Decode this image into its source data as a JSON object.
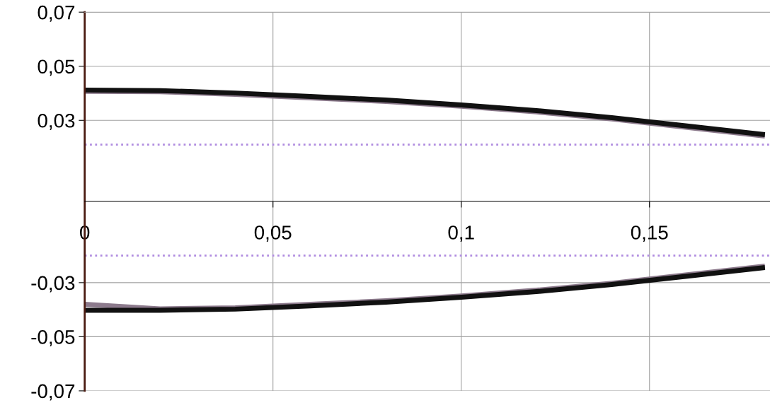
{
  "chart_data": {
    "type": "line",
    "x": [
      0,
      0.02,
      0.04,
      0.06,
      0.08,
      0.1,
      0.12,
      0.14,
      0.16,
      0.18
    ],
    "series": [
      {
        "color": "#8c7a8c",
        "values": [
          0.0407,
          0.0406,
          0.0396,
          0.0383,
          0.037,
          0.0352,
          0.0331,
          0.0305,
          0.0274,
          0.0243
        ]
      },
      {
        "color": "#111111",
        "values": [
          0.0412,
          0.041,
          0.0401,
          0.0388,
          0.0375,
          0.0357,
          0.0336,
          0.031,
          0.0279,
          0.0248
        ]
      },
      {
        "color": "#8c7a8c",
        "values": [
          -0.038,
          -0.0397,
          -0.0393,
          -0.038,
          -0.0367,
          -0.0349,
          -0.0328,
          -0.0302,
          -0.0271,
          -0.024
        ]
      },
      {
        "color": "#111111",
        "values": [
          -0.0402,
          -0.0402,
          -0.0398,
          -0.0386,
          -0.0372,
          -0.0354,
          -0.0333,
          -0.0307,
          -0.0276,
          -0.0245
        ]
      }
    ],
    "xlim": [
      0,
      0.182
    ],
    "ylim": [
      -0.07,
      0.07
    ],
    "xticks": [
      {
        "value": 0,
        "label": "0"
      },
      {
        "value": 0.05,
        "label": "0,05"
      },
      {
        "value": 0.1,
        "label": "0,1"
      },
      {
        "value": 0.15,
        "label": "0,15"
      }
    ],
    "yticks": [
      {
        "value": -0.07,
        "label": "-0,07"
      },
      {
        "value": -0.05,
        "label": "-0,05"
      },
      {
        "value": -0.03,
        "label": "-0,03"
      },
      {
        "value": 0.03,
        "label": "0,03"
      },
      {
        "value": 0.05,
        "label": "0,05"
      },
      {
        "value": 0.07,
        "label": "0,07"
      }
    ],
    "ref_lines": [
      {
        "axis": "y",
        "value": 0.021,
        "color": "#b08ce0",
        "line_style": "dotted"
      },
      {
        "axis": "y",
        "value": -0.02,
        "color": "#b08ce0",
        "line_style": "dotted"
      }
    ],
    "grid": true,
    "marker": "none",
    "line_style": "solid"
  }
}
